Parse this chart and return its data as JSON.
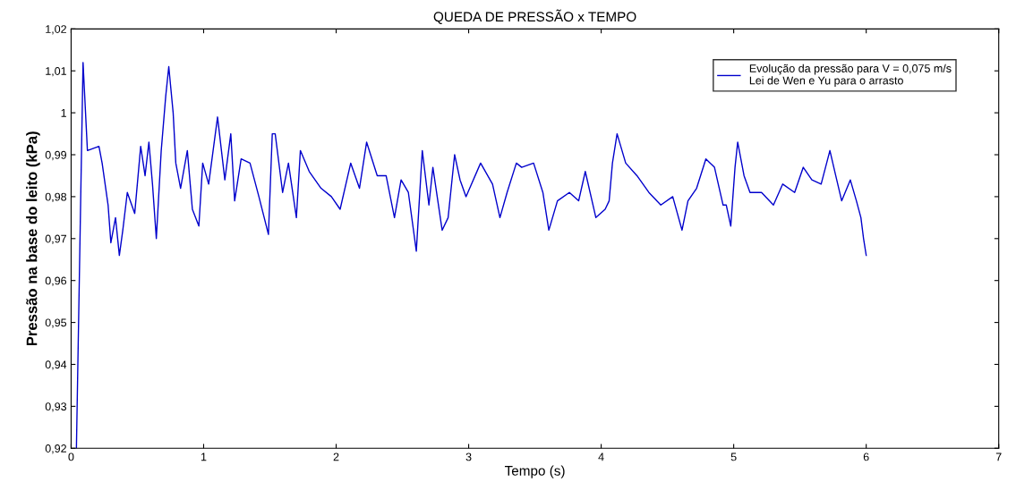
{
  "chart_data": {
    "type": "line",
    "title": "QUEDA DE PRESSÃO x TEMPO",
    "xlabel": "Tempo (s)",
    "ylabel": "Pressão na base do leito (kPa)",
    "xlim": [
      0,
      7
    ],
    "xticks": [
      0,
      1,
      2,
      3,
      4,
      5,
      6,
      7
    ],
    "ylim": [
      0.92,
      1.02
    ],
    "yticks": [
      {
        "value": 0.92,
        "label": "0,92"
      },
      {
        "value": 0.93,
        "label": "0,93"
      },
      {
        "value": 0.94,
        "label": "0,94"
      },
      {
        "value": 0.95,
        "label": "0,95"
      },
      {
        "value": 0.96,
        "label": "0,96"
      },
      {
        "value": 0.97,
        "label": "0,97"
      },
      {
        "value": 0.98,
        "label": "0,98"
      },
      {
        "value": 0.99,
        "label": "0,99"
      },
      {
        "value": 1,
        "label": "1"
      },
      {
        "value": 1.01,
        "label": "1,01"
      },
      {
        "value": 1.02,
        "label": "1,02"
      }
    ],
    "grid": false,
    "legend": "top right",
    "marker": "none",
    "line_style": "solid",
    "series": [
      {
        "name": "Evolução da pressão para V = 0,075 m/s\nLei de Wen e Yu para o arrasto",
        "color": "#0000cc",
        "x": [
          0.04,
          0.09,
          0.123,
          0.21,
          0.234,
          0.279,
          0.3,
          0.335,
          0.364,
          0.39,
          0.424,
          0.48,
          0.525,
          0.558,
          0.587,
          0.614,
          0.643,
          0.68,
          0.714,
          0.737,
          0.77,
          0.79,
          0.826,
          0.877,
          0.915,
          0.964,
          0.993,
          1.038,
          1.105,
          1.16,
          1.205,
          1.234,
          1.283,
          1.35,
          1.417,
          1.489,
          1.518,
          1.54,
          1.596,
          1.64,
          1.7,
          1.73,
          1.797,
          1.886,
          1.964,
          2.03,
          2.11,
          2.176,
          2.23,
          2.31,
          2.377,
          2.44,
          2.49,
          2.545,
          2.605,
          2.65,
          2.7,
          2.73,
          2.8,
          2.845,
          2.894,
          2.935,
          2.98,
          3.09,
          3.18,
          3.236,
          3.29,
          3.36,
          3.4,
          3.49,
          3.56,
          3.605,
          3.67,
          3.76,
          3.83,
          3.88,
          3.96,
          4.03,
          4.06,
          4.085,
          4.12,
          4.185,
          4.27,
          4.36,
          4.45,
          4.54,
          4.61,
          4.655,
          4.72,
          4.79,
          4.855,
          4.92,
          4.944,
          4.978,
          5.01,
          5.03,
          5.078,
          5.123,
          5.21,
          5.3,
          5.37,
          5.46,
          5.525,
          5.59,
          5.66,
          5.726,
          5.77,
          5.815,
          5.88,
          5.926,
          5.96,
          5.98,
          6.0
        ],
        "values": [
          0.92,
          1.012,
          0.991,
          0.992,
          0.988,
          0.978,
          0.969,
          0.975,
          0.966,
          0.972,
          0.981,
          0.976,
          0.992,
          0.985,
          0.993,
          0.983,
          0.97,
          0.991,
          1.004,
          1.011,
          1.0,
          0.988,
          0.982,
          0.991,
          0.977,
          0.973,
          0.988,
          0.983,
          0.999,
          0.984,
          0.995,
          0.979,
          0.989,
          0.988,
          0.98,
          0.971,
          0.995,
          0.995,
          0.981,
          0.988,
          0.975,
          0.991,
          0.986,
          0.982,
          0.98,
          0.977,
          0.988,
          0.982,
          0.993,
          0.985,
          0.985,
          0.975,
          0.984,
          0.981,
          0.967,
          0.991,
          0.978,
          0.987,
          0.972,
          0.975,
          0.99,
          0.984,
          0.98,
          0.988,
          0.983,
          0.975,
          0.981,
          0.988,
          0.987,
          0.988,
          0.981,
          0.972,
          0.979,
          0.981,
          0.979,
          0.986,
          0.975,
          0.977,
          0.979,
          0.988,
          0.995,
          0.988,
          0.985,
          0.981,
          0.978,
          0.98,
          0.972,
          0.979,
          0.982,
          0.989,
          0.987,
          0.978,
          0.978,
          0.973,
          0.987,
          0.993,
          0.985,
          0.981,
          0.981,
          0.978,
          0.983,
          0.981,
          0.987,
          0.984,
          0.983,
          0.991,
          0.985,
          0.979,
          0.984,
          0.979,
          0.975,
          0.97,
          0.966
        ]
      }
    ]
  }
}
